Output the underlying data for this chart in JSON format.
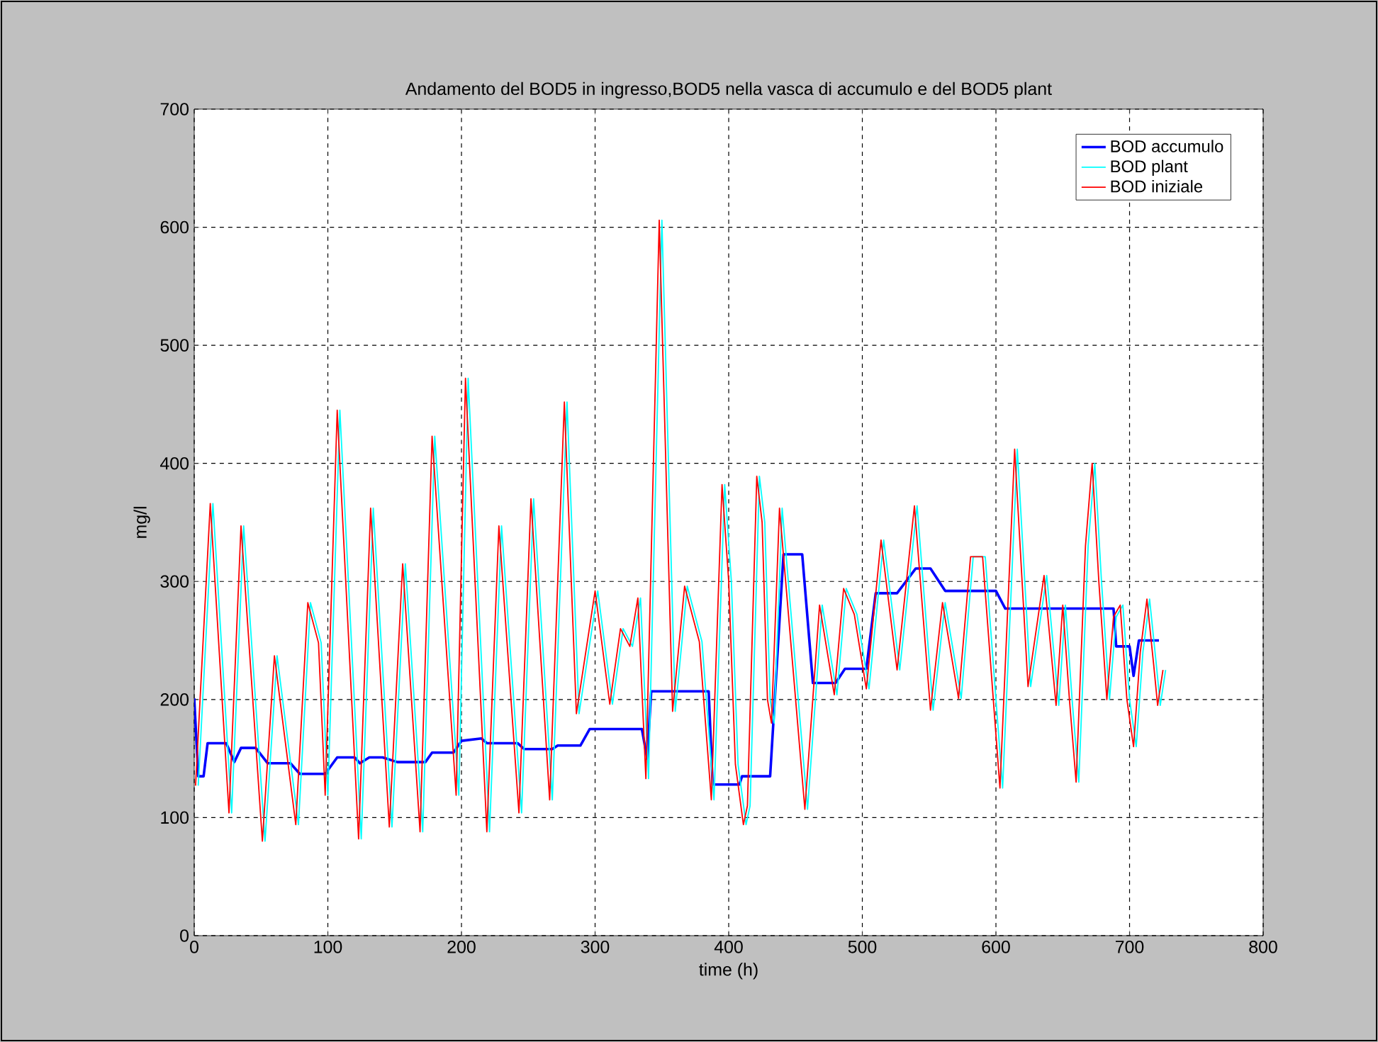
{
  "chart_data": {
    "type": "line",
    "title": "Andamento del BOD5 in ingresso,BOD5 nella vasca di accumulo e del BOD5 plant",
    "xlabel": "time (h)",
    "ylabel": "mg/l",
    "xlim": [
      0,
      800
    ],
    "xticks": [
      0,
      100,
      200,
      300,
      400,
      500,
      600,
      700,
      800
    ],
    "ylim": [
      0,
      700
    ],
    "yticks": [
      0,
      100,
      200,
      300,
      400,
      500,
      600,
      700
    ],
    "grid": true,
    "legend": "top right",
    "series": [
      {
        "name": "BOD accumulo",
        "color": "#0000ff",
        "x": [
          0,
          3,
          7,
          10,
          24,
          30,
          35,
          46,
          55,
          72,
          79,
          98,
          107,
          120,
          124,
          131,
          141,
          152,
          173,
          178,
          194,
          200,
          215,
          219,
          242,
          247,
          268,
          272,
          289,
          296,
          335,
          339,
          342,
          385,
          388,
          408,
          410,
          431,
          441,
          455,
          463,
          480,
          487,
          503,
          510,
          526,
          540,
          551,
          562,
          600,
          607,
          688,
          690,
          700,
          703,
          707,
          722
        ],
        "values": [
          201,
          135,
          135,
          163,
          163,
          147,
          159,
          159,
          146,
          146,
          137,
          137,
          151,
          151,
          146,
          151,
          151,
          147,
          147,
          155,
          155,
          165,
          167,
          163,
          163,
          158,
          158,
          161,
          161,
          175,
          175,
          150,
          207,
          207,
          128,
          128,
          135,
          135,
          323,
          323,
          214,
          214,
          226,
          226,
          290,
          290,
          311,
          311,
          292,
          292,
          277,
          277,
          245,
          245,
          220,
          250,
          250
        ]
      },
      {
        "name": "BOD plant",
        "color": "#00ffff",
        "x": [
          3,
          14,
          28,
          37,
          53,
          62,
          78,
          87,
          95,
          100,
          109,
          125,
          134,
          148,
          158,
          171,
          180,
          198,
          205,
          221,
          230,
          245,
          254,
          268,
          279,
          288,
          302,
          313,
          321,
          328,
          334,
          340,
          350,
          360,
          369,
          380,
          389,
          397,
          402,
          407,
          413,
          416,
          423,
          427,
          431,
          434,
          440,
          459,
          470,
          481,
          488,
          496,
          505,
          516,
          528,
          541,
          553,
          562,
          574,
          583,
          592,
          605,
          616,
          626,
          638,
          647,
          652,
          657,
          662,
          669,
          674,
          679,
          685,
          690,
          695,
          700,
          705,
          710,
          715,
          720,
          723,
          727
        ],
        "values": [
          127,
          366,
          104,
          347,
          80,
          237,
          94,
          282,
          248,
          119,
          445,
          82,
          362,
          92,
          315,
          88,
          423,
          119,
          472,
          88,
          347,
          104,
          370,
          115,
          452,
          188,
          292,
          196,
          260,
          245,
          286,
          133,
          606,
          190,
          296,
          249,
          115,
          382,
          300,
          145,
          94,
          110,
          389,
          350,
          200,
          180,
          362,
          107,
          280,
          204,
          294,
          272,
          209,
          335,
          225,
          364,
          191,
          282,
          201,
          321,
          321,
          125,
          412,
          211,
          305,
          195,
          280,
          200,
          130,
          330,
          400,
          300,
          200,
          270,
          280,
          200,
          160,
          240,
          285,
          230,
          195,
          225
        ]
      },
      {
        "name": "BOD iniziale",
        "color": "#ff0000",
        "x": [
          1,
          12,
          26,
          35,
          51,
          60,
          76,
          85,
          93,
          98,
          107,
          123,
          132,
          146,
          156,
          169,
          178,
          196,
          203,
          219,
          228,
          243,
          252,
          266,
          277,
          286,
          300,
          311,
          319,
          326,
          332,
          338,
          348,
          358,
          367,
          378,
          387,
          395,
          400,
          405,
          411,
          414,
          421,
          425,
          429,
          432,
          438,
          457,
          468,
          479,
          486,
          494,
          503,
          514,
          526,
          539,
          551,
          560,
          572,
          581,
          590,
          603,
          614,
          624,
          636,
          645,
          650,
          655,
          660,
          667,
          672,
          677,
          683,
          688,
          693,
          698,
          703,
          708,
          713,
          718,
          721,
          725
        ],
        "values": [
          127,
          366,
          104,
          347,
          80,
          237,
          94,
          282,
          248,
          119,
          445,
          82,
          362,
          92,
          315,
          88,
          423,
          119,
          472,
          88,
          347,
          104,
          370,
          115,
          452,
          188,
          292,
          196,
          260,
          245,
          286,
          133,
          606,
          190,
          296,
          249,
          115,
          382,
          300,
          145,
          94,
          110,
          389,
          350,
          200,
          180,
          362,
          107,
          280,
          204,
          294,
          272,
          209,
          335,
          225,
          364,
          191,
          282,
          201,
          321,
          321,
          125,
          412,
          211,
          305,
          195,
          280,
          200,
          130,
          330,
          400,
          300,
          200,
          270,
          280,
          200,
          160,
          240,
          285,
          230,
          195,
          225
        ]
      }
    ]
  }
}
